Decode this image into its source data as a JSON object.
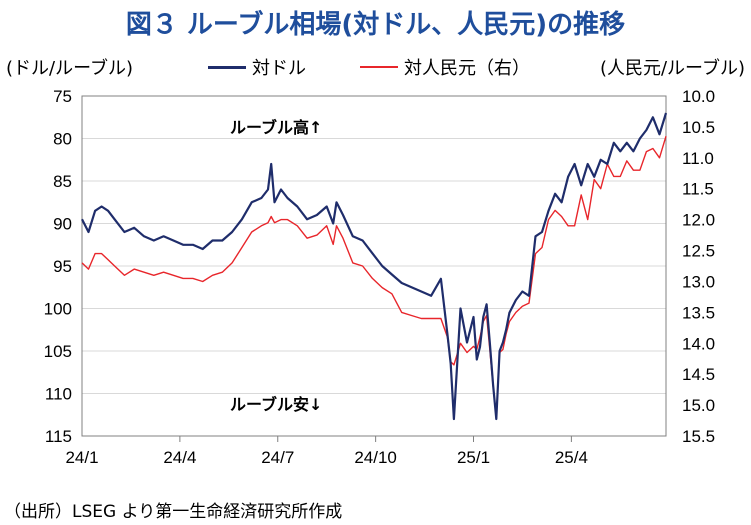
{
  "chart_data": {
    "type": "line",
    "title": "図３ ルーブル相場(対ドル、人民元)の推移",
    "y_left_label": "(ドル/ルーブル)",
    "y_right_label": "(人民元/ルーブル)",
    "y_left_range": [
      75,
      115
    ],
    "y_left_inverted": true,
    "y_right_range": [
      10.0,
      15.5
    ],
    "y_right_inverted": true,
    "y_left_ticks": [
      "75",
      "80",
      "85",
      "90",
      "95",
      "100",
      "105",
      "110",
      "115"
    ],
    "y_right_ticks": [
      "10.0",
      "10.5",
      "11.0",
      "11.5",
      "12.0",
      "12.5",
      "13.0",
      "13.5",
      "14.0",
      "14.5",
      "15.0",
      "15.5"
    ],
    "x_ticks": [
      "24/1",
      "24/4",
      "24/7",
      "24/10",
      "25/1",
      "25/4"
    ],
    "x_range": [
      0,
      17.9
    ],
    "grid": true,
    "legend_placement": "top",
    "annotations": {
      "top": "ルーブル高↑",
      "bottom": "ルーブル安↓"
    },
    "colors": {
      "usd": "#1f2d6b",
      "cny": "#e8262b",
      "grid": "#d9d9d9",
      "title": "#1f4e9c"
    },
    "series": [
      {
        "name": "対ドル",
        "axis": "left",
        "x": [
          0,
          0.2,
          0.4,
          0.6,
          0.8,
          1.0,
          1.3,
          1.6,
          1.9,
          2.2,
          2.5,
          2.8,
          3.1,
          3.4,
          3.7,
          4.0,
          4.3,
          4.6,
          4.9,
          5.2,
          5.5,
          5.7,
          5.8,
          5.9,
          6.1,
          6.3,
          6.6,
          6.9,
          7.2,
          7.5,
          7.7,
          7.8,
          8.0,
          8.3,
          8.6,
          8.9,
          9.2,
          9.5,
          9.8,
          10.1,
          10.4,
          10.7,
          11.0,
          11.2,
          11.3,
          11.4,
          11.6,
          11.8,
          12.0,
          12.1,
          12.2,
          12.3,
          12.4,
          12.5,
          12.6,
          12.7,
          12.8,
          12.9,
          13.0,
          13.1,
          13.3,
          13.5,
          13.7,
          13.9,
          14.1,
          14.3,
          14.5,
          14.7,
          14.9,
          15.1,
          15.3,
          15.5,
          15.7,
          15.9,
          16.1,
          16.3,
          16.5,
          16.7,
          16.9,
          17.1,
          17.3,
          17.5,
          17.7,
          17.9
        ],
        "values": [
          89.5,
          91,
          88.5,
          88,
          88.5,
          89.5,
          91,
          90.5,
          91.5,
          92,
          91.5,
          92,
          92.5,
          92.5,
          93,
          92,
          92,
          91,
          89.5,
          87.5,
          87,
          86,
          83,
          87.5,
          86,
          87,
          88,
          89.5,
          89,
          88,
          90,
          87.5,
          89,
          91.5,
          92,
          93.5,
          95,
          96,
          97,
          97.5,
          98,
          98.5,
          96.5,
          103,
          106.5,
          113,
          100,
          104,
          101,
          106,
          104.5,
          101,
          99.5,
          104,
          109,
          113,
          105,
          104,
          102.5,
          100.5,
          99,
          98,
          98.5,
          91.5,
          91,
          88.5,
          86.5,
          87.5,
          84.5,
          83,
          85.5,
          83,
          84.5,
          82.5,
          83,
          80.5,
          81.5,
          80.5,
          81.5,
          80,
          79,
          77.5,
          79.5,
          77
        ]
      },
      {
        "name": "対人民元（右）",
        "axis": "right",
        "x": [
          0,
          0.2,
          0.4,
          0.6,
          0.8,
          1.0,
          1.3,
          1.6,
          1.9,
          2.2,
          2.5,
          2.8,
          3.1,
          3.4,
          3.7,
          4.0,
          4.3,
          4.6,
          4.9,
          5.2,
          5.5,
          5.7,
          5.8,
          5.9,
          6.1,
          6.3,
          6.6,
          6.9,
          7.2,
          7.5,
          7.7,
          7.8,
          8.0,
          8.3,
          8.6,
          8.9,
          9.2,
          9.5,
          9.8,
          10.1,
          10.4,
          10.7,
          11.0,
          11.2,
          11.3,
          11.4,
          11.6,
          11.8,
          12.0,
          12.1,
          12.2,
          12.3,
          12.4,
          12.5,
          12.6,
          12.7,
          12.8,
          12.9,
          13.0,
          13.1,
          13.3,
          13.5,
          13.7,
          13.9,
          14.1,
          14.3,
          14.5,
          14.7,
          14.9,
          15.1,
          15.3,
          15.5,
          15.7,
          15.9,
          16.1,
          16.3,
          16.5,
          16.7,
          16.9,
          17.1,
          17.3,
          17.5,
          17.7,
          17.9
        ],
        "values": [
          12.7,
          12.8,
          12.55,
          12.55,
          12.65,
          12.75,
          12.9,
          12.8,
          12.85,
          12.9,
          12.85,
          12.9,
          12.95,
          12.95,
          13.0,
          12.9,
          12.85,
          12.7,
          12.45,
          12.2,
          12.1,
          12.05,
          11.95,
          12.05,
          12.0,
          12.0,
          12.1,
          12.3,
          12.25,
          12.1,
          12.4,
          12.1,
          12.3,
          12.7,
          12.75,
          12.95,
          13.1,
          13.2,
          13.5,
          13.55,
          13.6,
          13.6,
          13.6,
          13.9,
          14.3,
          14.35,
          14.0,
          14.15,
          14.05,
          14.1,
          13.9,
          13.65,
          13.55,
          14.1,
          14.7,
          15.2,
          14.15,
          14.1,
          13.85,
          13.65,
          13.5,
          13.4,
          13.35,
          12.55,
          12.45,
          12.0,
          11.85,
          11.95,
          12.1,
          12.1,
          11.6,
          12.0,
          11.35,
          11.5,
          11.1,
          11.3,
          11.3,
          11.05,
          11.2,
          11.2,
          10.9,
          10.85,
          11.0,
          10.65
        ]
      }
    ]
  },
  "source": "（出所）LSEG より第一生命経済研究所作成"
}
